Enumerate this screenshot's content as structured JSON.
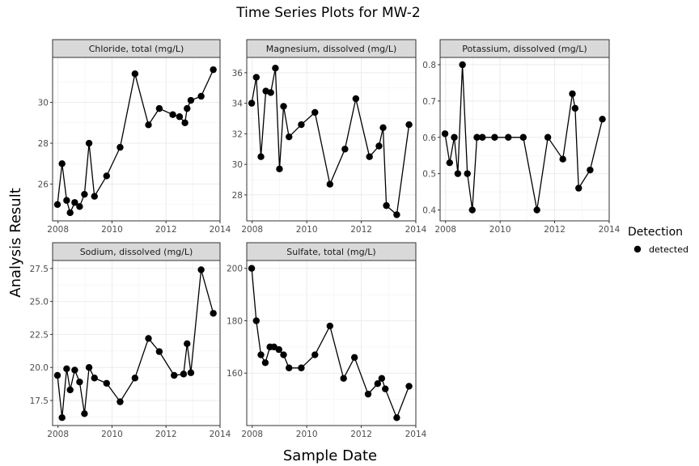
{
  "chart_data": {
    "type": "scatter",
    "title": "Time Series Plots for MW-2",
    "xlabel": "Sample Date",
    "ylabel": "Analysis Result",
    "legend": {
      "title": "Detection",
      "entries": [
        "detected"
      ],
      "placement": "right"
    },
    "grid": true,
    "panels": [
      {
        "title": "Chloride, total (mg/L)",
        "xlim": [
          2007.8,
          2014.0
        ],
        "ylim": [
          24.2,
          32.2
        ],
        "xticks": [
          2008,
          2010,
          2012,
          2014
        ],
        "yticks": [
          26,
          28,
          30
        ],
        "x": [
          2007.98,
          2008.15,
          2008.32,
          2008.45,
          2008.62,
          2008.8,
          2008.98,
          2009.15,
          2009.35,
          2009.8,
          2010.3,
          2010.85,
          2011.35,
          2011.75,
          2012.25,
          2012.5,
          2012.7,
          2012.78,
          2012.92,
          2013.3,
          2013.75
        ],
        "y": [
          25.0,
          27.0,
          25.2,
          24.6,
          25.1,
          24.9,
          25.5,
          28.0,
          25.4,
          26.4,
          27.8,
          31.4,
          28.9,
          29.7,
          29.4,
          29.3,
          29.0,
          29.7,
          30.1,
          30.3,
          31.6
        ]
      },
      {
        "title": "Magnesium, dissolved (mg/L)",
        "xlim": [
          2007.8,
          2014.0
        ],
        "ylim": [
          26.3,
          37.0
        ],
        "xticks": [
          2008,
          2010,
          2012,
          2014
        ],
        "yticks": [
          28,
          30,
          32,
          34,
          36
        ],
        "x": [
          2007.98,
          2008.15,
          2008.32,
          2008.5,
          2008.68,
          2008.85,
          2009.0,
          2009.15,
          2009.35,
          2009.8,
          2010.3,
          2010.85,
          2011.4,
          2011.8,
          2012.3,
          2012.65,
          2012.8,
          2012.92,
          2013.3,
          2013.75
        ],
        "y": [
          34.0,
          35.7,
          30.5,
          34.8,
          34.7,
          36.3,
          29.7,
          33.8,
          31.8,
          32.6,
          33.4,
          28.7,
          31.0,
          34.3,
          30.5,
          31.2,
          32.4,
          27.3,
          26.7,
          32.6
        ]
      },
      {
        "title": "Potassium, dissolved (mg/L)",
        "xlim": [
          2007.8,
          2014.0
        ],
        "ylim": [
          0.37,
          0.82
        ],
        "xticks": [
          2008,
          2010,
          2012,
          2014
        ],
        "yticks": [
          0.4,
          0.5,
          0.6,
          0.7,
          0.8
        ],
        "x": [
          2007.98,
          2008.15,
          2008.32,
          2008.45,
          2008.62,
          2008.8,
          2008.98,
          2009.15,
          2009.35,
          2009.8,
          2010.3,
          2010.85,
          2011.35,
          2011.75,
          2012.3,
          2012.65,
          2012.75,
          2012.88,
          2013.3,
          2013.75
        ],
        "y": [
          0.61,
          0.53,
          0.6,
          0.5,
          0.8,
          0.5,
          0.4,
          0.6,
          0.6,
          0.6,
          0.6,
          0.6,
          0.4,
          0.6,
          0.54,
          0.72,
          0.68,
          0.46,
          0.51,
          0.65
        ]
      },
      {
        "title": "Sodium, dissolved (mg/L)",
        "xlim": [
          2007.8,
          2014.0
        ],
        "ylim": [
          15.6,
          28.1
        ],
        "xticks": [
          2008,
          2010,
          2012,
          2014
        ],
        "yticks": [
          17.5,
          20.0,
          22.5,
          25.0,
          27.5
        ],
        "x": [
          2007.98,
          2008.15,
          2008.32,
          2008.45,
          2008.62,
          2008.8,
          2008.98,
          2009.15,
          2009.35,
          2009.8,
          2010.3,
          2010.85,
          2011.35,
          2011.75,
          2012.3,
          2012.65,
          2012.78,
          2012.92,
          2013.3,
          2013.75
        ],
        "y": [
          19.4,
          16.2,
          19.9,
          18.3,
          19.8,
          18.9,
          16.5,
          20.0,
          19.2,
          18.8,
          17.4,
          19.2,
          22.2,
          21.2,
          19.4,
          19.5,
          21.8,
          19.6,
          27.4,
          24.1
        ]
      },
      {
        "title": "Sulfate, total (mg/L)",
        "xlim": [
          2007.8,
          2014.0
        ],
        "ylim": [
          140.0,
          203.0
        ],
        "xticks": [
          2008,
          2010,
          2012,
          2014
        ],
        "yticks": [
          160,
          180,
          200
        ],
        "x": [
          2007.98,
          2008.15,
          2008.32,
          2008.48,
          2008.65,
          2008.8,
          2008.98,
          2009.15,
          2009.35,
          2009.8,
          2010.3,
          2010.85,
          2011.35,
          2011.75,
          2012.25,
          2012.6,
          2012.75,
          2012.88,
          2013.3,
          2013.75
        ],
        "y": [
          200,
          180,
          167,
          164,
          170,
          170,
          169,
          167,
          162,
          162,
          167,
          178,
          158,
          166,
          152,
          156,
          158,
          154,
          143,
          155
        ]
      }
    ]
  }
}
